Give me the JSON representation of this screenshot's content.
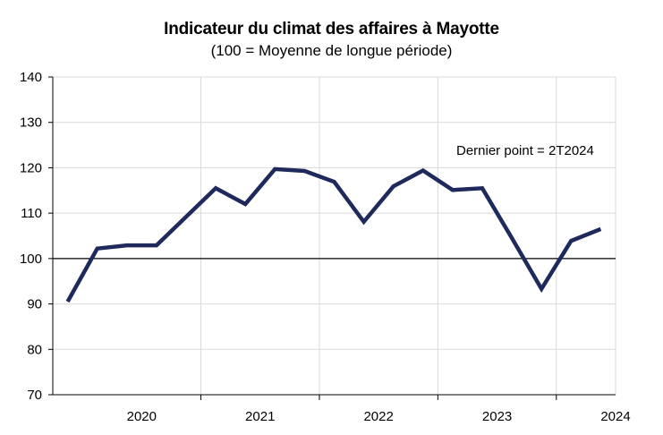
{
  "chart_data": {
    "type": "line",
    "title": "Indicateur du climat des affaires à Mayotte",
    "subtitle": "(100 = Moyenne de longue période)",
    "xlabel": "",
    "ylabel": "",
    "ylim": [
      70,
      140
    ],
    "yticks": [
      70,
      80,
      90,
      100,
      110,
      120,
      130,
      140
    ],
    "years": [
      "2020",
      "2021",
      "2022",
      "2023",
      "2024"
    ],
    "reference_line": 100,
    "annotation": "Dernier point  = 2T2024",
    "grid": "vertical year gridlines",
    "colors": {
      "series": "#1f2a5c"
    },
    "series": [
      {
        "x": [
          "2019T4",
          "2020T1",
          "2020T2",
          "2020T3",
          "2021T1",
          "2021T2",
          "2021T3",
          "2021T4",
          "2022T1",
          "2022T2",
          "2022T3",
          "2022T4",
          "2023T1",
          "2023T2",
          "2023T3",
          "2023T4",
          "2024T1",
          "2024T2"
        ],
        "values": [
          90.5,
          102.2,
          102.9,
          102.9,
          115.5,
          112,
          119.7,
          119.3,
          116.9,
          108.1,
          115.9,
          119.4,
          115.1,
          115.5,
          104.5,
          93.3,
          103.9,
          106.5
        ]
      }
    ]
  }
}
